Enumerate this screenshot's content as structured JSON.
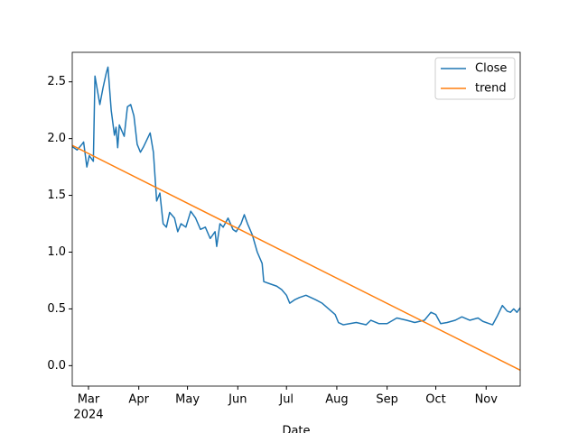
{
  "chart_data": {
    "type": "line",
    "x_label": "Date",
    "xtick_year": "2024",
    "x": [
      51,
      54,
      57,
      58,
      60,
      61.5,
      64,
      65,
      68,
      70,
      72,
      73,
      75,
      77,
      78,
      79,
      80,
      83,
      85,
      87,
      89,
      91,
      93,
      95,
      99,
      101,
      103,
      105,
      107,
      109,
      111,
      114,
      116,
      118,
      121,
      124,
      127,
      130,
      133,
      136,
      139,
      140,
      142,
      144,
      147,
      150,
      152,
      155,
      157,
      159,
      162,
      165,
      168,
      169,
      173,
      177,
      180,
      183,
      185,
      188,
      191,
      195,
      201,
      205,
      209,
      213,
      215,
      218,
      222,
      226,
      232,
      235,
      240,
      245,
      251,
      257,
      262,
      268,
      272,
      275,
      278,
      282,
      287,
      291,
      296,
      301,
      304,
      308,
      310,
      313,
      316,
      319,
      321,
      323,
      325,
      327
    ],
    "series": [
      {
        "name": "Close",
        "color": "#1f77b4",
        "values": [
          1.93,
          1.9,
          1.95,
          1.97,
          1.75,
          1.85,
          1.8,
          2.55,
          2.3,
          2.45,
          2.58,
          2.63,
          2.25,
          2.03,
          2.1,
          1.92,
          2.12,
          2.02,
          2.28,
          2.3,
          2.2,
          1.95,
          1.88,
          1.93,
          2.05,
          1.88,
          1.45,
          1.52,
          1.25,
          1.22,
          1.35,
          1.3,
          1.18,
          1.25,
          1.22,
          1.36,
          1.3,
          1.2,
          1.22,
          1.12,
          1.18,
          1.05,
          1.25,
          1.22,
          1.3,
          1.2,
          1.18,
          1.25,
          1.33,
          1.25,
          1.15,
          1.0,
          0.9,
          0.74,
          0.72,
          0.7,
          0.67,
          0.62,
          0.55,
          0.58,
          0.6,
          0.62,
          0.58,
          0.55,
          0.5,
          0.45,
          0.38,
          0.36,
          0.37,
          0.38,
          0.36,
          0.4,
          0.37,
          0.37,
          0.42,
          0.4,
          0.38,
          0.4,
          0.47,
          0.45,
          0.37,
          0.38,
          0.4,
          0.43,
          0.4,
          0.42,
          0.39,
          0.37,
          0.36,
          0.44,
          0.53,
          0.48,
          0.47,
          0.5,
          0.47,
          0.51
        ]
      },
      {
        "name": "trend",
        "color": "#ff7f0e",
        "x": [
          51,
          327
        ],
        "values": [
          1.94,
          -0.04
        ]
      }
    ],
    "xlim": [
      51,
      327
    ],
    "xticks": [
      {
        "value": 61,
        "label": "Mar"
      },
      {
        "value": 92,
        "label": "Apr"
      },
      {
        "value": 122,
        "label": "May"
      },
      {
        "value": 153,
        "label": "Jun"
      },
      {
        "value": 183,
        "label": "Jul"
      },
      {
        "value": 214,
        "label": "Aug"
      },
      {
        "value": 245,
        "label": "Sep"
      },
      {
        "value": 275,
        "label": "Oct"
      },
      {
        "value": 306,
        "label": "Nov"
      }
    ],
    "ylim": [
      -0.18,
      2.76
    ],
    "yticks": [
      {
        "value": 0,
        "label": "0.0"
      },
      {
        "value": 0.5,
        "label": "0.5"
      },
      {
        "value": 1,
        "label": "1.0"
      },
      {
        "value": 1.5,
        "label": "1.5"
      },
      {
        "value": 2,
        "label": "2.0"
      },
      {
        "value": 2.5,
        "label": "2.5"
      }
    ],
    "legend": "upper right"
  }
}
